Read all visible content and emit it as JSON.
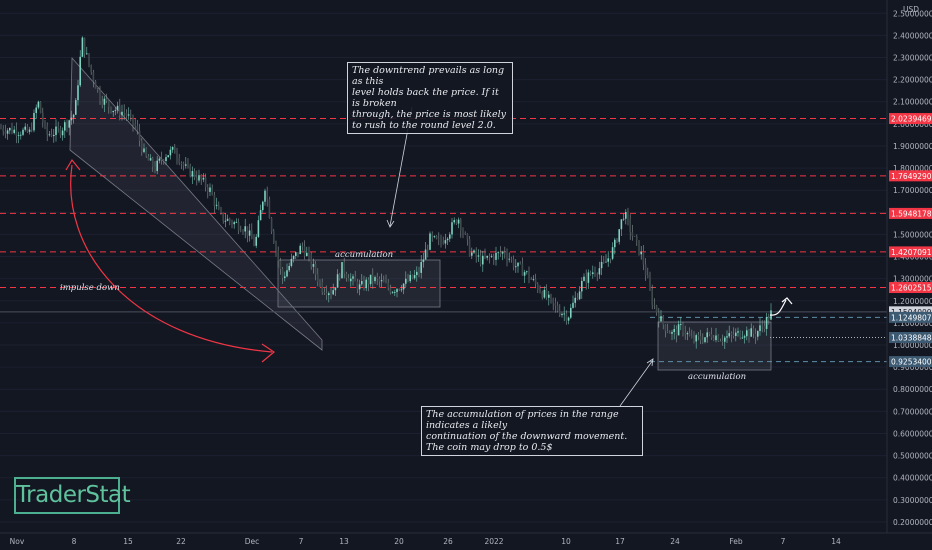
{
  "chart_data": {
    "type": "candlestick",
    "currency_label": "USD",
    "y_axis_ticks": [
      "2.50000000",
      "2.40000000",
      "2.30000000",
      "2.20000000",
      "2.10000000",
      "2.00000000",
      "1.90000000",
      "1.80000000",
      "1.70000000",
      "1.60000000",
      "1.50000000",
      "1.40000000",
      "1.30000000",
      "1.20000000",
      "1.10000000",
      "1.00000000",
      "0.90000000",
      "0.80000000",
      "0.70000000",
      "0.60000000",
      "0.50000000",
      "0.40000000",
      "0.30000000",
      "0.20000000"
    ],
    "x_axis_ticks": [
      "Nov",
      "8",
      "15",
      "22",
      "Dec",
      "7",
      "13",
      "20",
      "26",
      "2022",
      "10",
      "17",
      "24",
      "Feb",
      "7",
      "14"
    ],
    "ylim": [
      0.15,
      2.56
    ],
    "levels": [
      {
        "label": "2.02394695",
        "value": 2.024,
        "color": "#f23645",
        "style": "red-dash"
      },
      {
        "label": "1.76492905",
        "value": 1.765,
        "color": "#f23645",
        "style": "red-dash"
      },
      {
        "label": "1.59481788",
        "value": 1.595,
        "color": "#f23645",
        "style": "red-dash"
      },
      {
        "label": "1.42070910",
        "value": 1.421,
        "color": "#f23645",
        "style": "red-dash"
      },
      {
        "label": "1.26025152",
        "value": 1.26,
        "color": "#f23645",
        "style": "red-dash"
      },
      {
        "label": "1.15040000",
        "value": 1.15,
        "color": "#d1d4dc",
        "style": "current-price"
      },
      {
        "label": "1.12498070",
        "value": 1.125,
        "color": "#4a5a6a",
        "style": "blue-dash"
      },
      {
        "label": "1.03388484",
        "value": 1.034,
        "color": "#4a5a6a",
        "style": "white-dot"
      },
      {
        "label": "0.92534005",
        "value": 0.925,
        "color": "#4a5a6a",
        "style": "blue-dash"
      }
    ],
    "price_path": [
      [
        0,
        1.98
      ],
      [
        30,
        1.96
      ],
      [
        38,
        2.1
      ],
      [
        46,
        1.95
      ],
      [
        60,
        1.97
      ],
      [
        75,
        2.05
      ],
      [
        82,
        2.38
      ],
      [
        90,
        2.25
      ],
      [
        100,
        2.12
      ],
      [
        112,
        2.07
      ],
      [
        125,
        2.05
      ],
      [
        135,
        1.99
      ],
      [
        145,
        1.85
      ],
      [
        155,
        1.8
      ],
      [
        165,
        1.86
      ],
      [
        175,
        1.88
      ],
      [
        185,
        1.8
      ],
      [
        200,
        1.75
      ],
      [
        210,
        1.7
      ],
      [
        220,
        1.58
      ],
      [
        235,
        1.55
      ],
      [
        245,
        1.53
      ],
      [
        255,
        1.45
      ],
      [
        265,
        1.72
      ],
      [
        272,
        1.52
      ],
      [
        282,
        1.3
      ],
      [
        292,
        1.38
      ],
      [
        302,
        1.45
      ],
      [
        312,
        1.36
      ],
      [
        322,
        1.26
      ],
      [
        332,
        1.24
      ],
      [
        342,
        1.35
      ],
      [
        350,
        1.3
      ],
      [
        360,
        1.26
      ],
      [
        372,
        1.3
      ],
      [
        382,
        1.28
      ],
      [
        392,
        1.25
      ],
      [
        405,
        1.28
      ],
      [
        418,
        1.32
      ],
      [
        430,
        1.48
      ],
      [
        440,
        1.46
      ],
      [
        450,
        1.52
      ],
      [
        458,
        1.58
      ],
      [
        470,
        1.42
      ],
      [
        482,
        1.38
      ],
      [
        492,
        1.4
      ],
      [
        505,
        1.42
      ],
      [
        515,
        1.36
      ],
      [
        525,
        1.33
      ],
      [
        540,
        1.25
      ],
      [
        555,
        1.17
      ],
      [
        568,
        1.13
      ],
      [
        582,
        1.28
      ],
      [
        592,
        1.33
      ],
      [
        604,
        1.36
      ],
      [
        614,
        1.44
      ],
      [
        624,
        1.6
      ],
      [
        632,
        1.5
      ],
      [
        642,
        1.4
      ],
      [
        652,
        1.2
      ],
      [
        662,
        1.1
      ],
      [
        672,
        1.05
      ],
      [
        682,
        1.08
      ],
      [
        692,
        1.02
      ],
      [
        702,
        1.03
      ],
      [
        712,
        1.05
      ],
      [
        722,
        1.03
      ],
      [
        732,
        1.04
      ],
      [
        745,
        1.06
      ],
      [
        755,
        1.05
      ],
      [
        765,
        1.1
      ],
      [
        772,
        1.15
      ]
    ]
  },
  "annotations": {
    "top_note_line1": "The downtrend prevails as long as this",
    "top_note_line2": "level holds back the price. If it is broken",
    "top_note_line3": "through, the price is most likely",
    "top_note_line4": "to rush to the round level 2.0.",
    "bottom_note_line1": "The accumulation of prices in the range indicates a likely",
    "bottom_note_line2": "continuation of the downward movement.",
    "bottom_note_line3": "The coin may drop to 0.5$",
    "accumulation_left": "accumulation",
    "accumulation_right": "accumulation",
    "impulse_down": "impulse down"
  },
  "logo": {
    "text": "TraderStat"
  }
}
